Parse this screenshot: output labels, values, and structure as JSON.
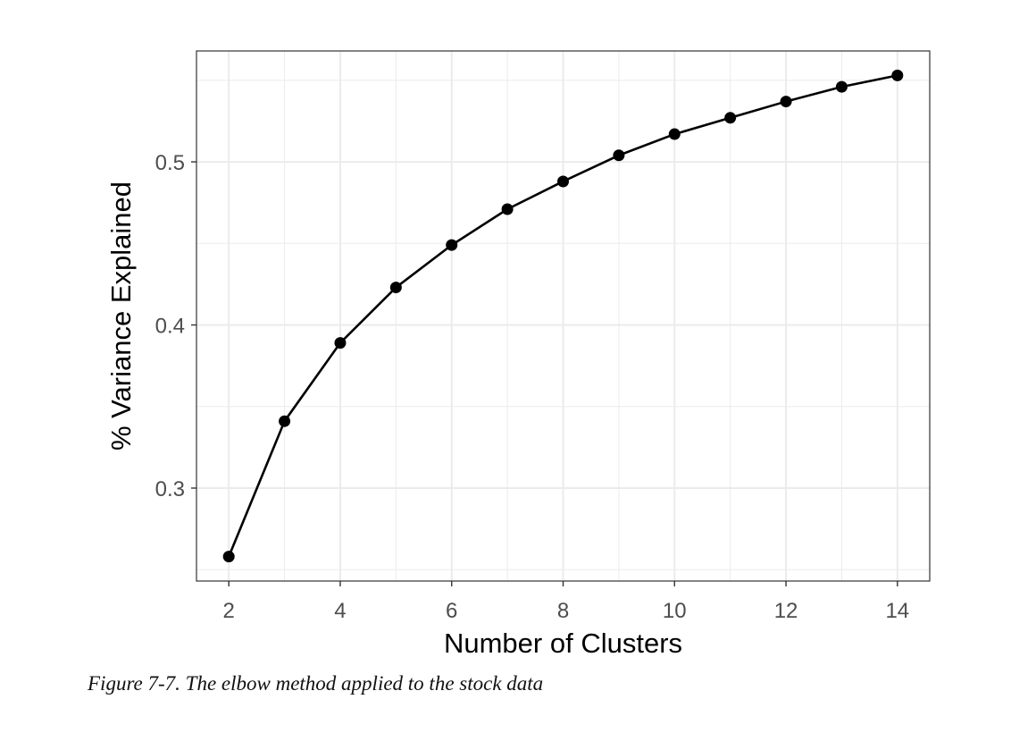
{
  "caption": "Figure 7-7. The elbow method applied to the stock data",
  "chart_data": {
    "type": "line",
    "title": "",
    "xlabel": "Number of Clusters",
    "ylabel": "% Variance Explained",
    "x": [
      2,
      3,
      4,
      5,
      6,
      7,
      8,
      9,
      10,
      11,
      12,
      13,
      14
    ],
    "y": [
      0.258,
      0.341,
      0.389,
      0.423,
      0.449,
      0.471,
      0.488,
      0.504,
      0.517,
      0.527,
      0.537,
      0.546,
      0.553
    ],
    "xlim": [
      1.42,
      14.58
    ],
    "ylim": [
      0.243,
      0.568
    ],
    "x_ticks": [
      2,
      4,
      6,
      8,
      10,
      12,
      14
    ],
    "y_ticks": [
      0.3,
      0.4,
      0.5
    ],
    "y_tick_labels": [
      "0.3",
      "0.4",
      "0.5"
    ],
    "grid": true,
    "legend": "none",
    "colors": {
      "line": "#000000",
      "grid": "#ebebeb",
      "border": "#333333"
    }
  }
}
